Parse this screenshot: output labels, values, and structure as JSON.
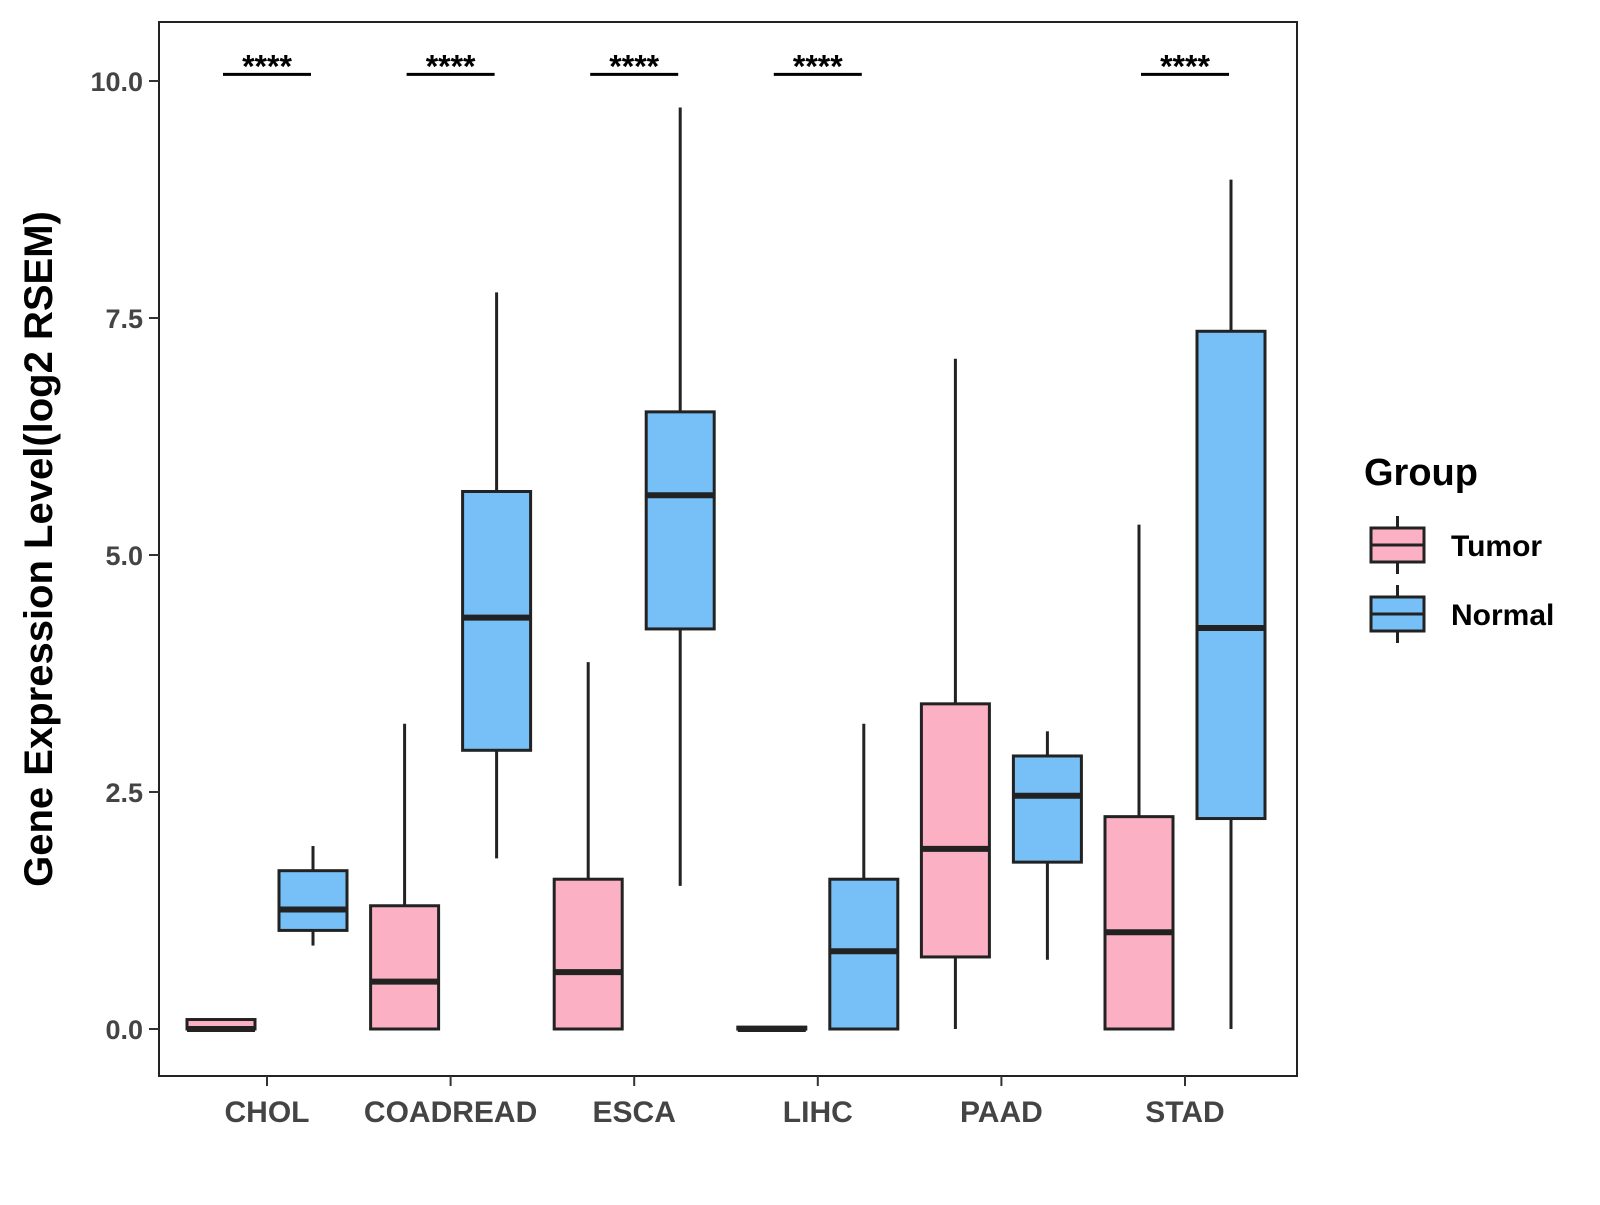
{
  "chart_data": {
    "type": "boxplot",
    "title": "",
    "xlabel": "",
    "ylabel": "Gene Expression Level(log2 RSEM)",
    "ylim": [
      -0.5,
      10.6
    ],
    "yticks": [
      0.0,
      2.5,
      5.0,
      7.5,
      10.0
    ],
    "ytick_labels": [
      "0.0",
      "2.5",
      "5.0",
      "7.5",
      "10.0"
    ],
    "categories": [
      "CHOL",
      "COADREAD",
      "ESCA",
      "LIHC",
      "PAAD",
      "STAD"
    ],
    "legend": {
      "title": "Group",
      "position": "right",
      "entries": [
        {
          "name": "Tumor",
          "color": "#FBB1C3"
        },
        {
          "name": "Normal",
          "color": "#76C0F7"
        }
      ]
    },
    "series": [
      {
        "name": "Tumor",
        "color": "#FBB1C3",
        "boxes": [
          {
            "category": "CHOL",
            "min": 0.0,
            "q1": 0.0,
            "median": 0.0,
            "q3": 0.1,
            "max": 0.1
          },
          {
            "category": "COADREAD",
            "min": 0.0,
            "q1": 0.0,
            "median": 0.5,
            "q3": 1.3,
            "max": 3.22
          },
          {
            "category": "ESCA",
            "min": 0.0,
            "q1": 0.0,
            "median": 0.6,
            "q3": 1.58,
            "max": 3.87
          },
          {
            "category": "LIHC",
            "min": 0.0,
            "q1": 0.0,
            "median": 0.0,
            "q3": 0.02,
            "max": 0.02
          },
          {
            "category": "PAAD",
            "min": 0.0,
            "q1": 0.76,
            "median": 1.9,
            "q3": 3.43,
            "max": 7.07
          },
          {
            "category": "STAD",
            "min": 0.0,
            "q1": 0.0,
            "median": 1.02,
            "q3": 2.24,
            "max": 5.32
          }
        ]
      },
      {
        "name": "Normal",
        "color": "#76C0F7",
        "boxes": [
          {
            "category": "CHOL",
            "min": 0.88,
            "q1": 1.04,
            "median": 1.26,
            "q3": 1.67,
            "max": 1.93
          },
          {
            "category": "COADREAD",
            "min": 1.8,
            "q1": 2.94,
            "median": 4.34,
            "q3": 5.67,
            "max": 7.77
          },
          {
            "category": "ESCA",
            "min": 1.51,
            "q1": 4.22,
            "median": 5.63,
            "q3": 6.51,
            "max": 9.72
          },
          {
            "category": "LIHC",
            "min": 0.0,
            "q1": 0.0,
            "median": 0.82,
            "q3": 1.58,
            "max": 3.22
          },
          {
            "category": "PAAD",
            "min": 0.73,
            "q1": 1.76,
            "median": 2.46,
            "q3": 2.88,
            "max": 3.14
          },
          {
            "category": "STAD",
            "min": 0.0,
            "q1": 2.22,
            "median": 4.23,
            "q3": 7.36,
            "max": 8.96
          }
        ]
      }
    ],
    "annotations": [
      {
        "category": "CHOL",
        "text": "****"
      },
      {
        "category": "COADREAD",
        "text": "****"
      },
      {
        "category": "ESCA",
        "text": "****"
      },
      {
        "category": "LIHC",
        "text": "****"
      },
      {
        "category": "STAD",
        "text": "****"
      }
    ],
    "annotation_y": 10.07
  }
}
